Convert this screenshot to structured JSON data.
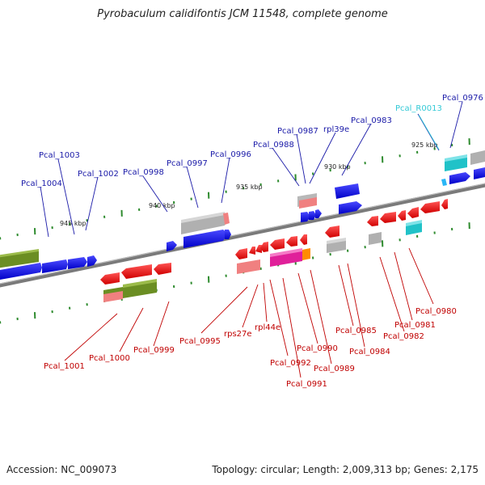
{
  "title": "Pyrobaculum calidifontis JCM 11548, complete genome",
  "accession": "Accession: NC_009073",
  "summary": "Topology: circular; Length: 2,009,313 bp; Genes: 2,175",
  "colors": {
    "backbone": "#8a8a8a",
    "tick": "#2e8b2e",
    "tick_label": "#222222",
    "forward_label": "#1a1aa8",
    "reverse_label": "#c00000",
    "rna_label": "#33c9d6",
    "cds_forward": "#1111ee",
    "cds_reverse": "#ee1111",
    "olive": "#6b8e23",
    "gray": "#b0b0b0",
    "cyan": "#20c2c8",
    "magenta": "#e0209a",
    "pink": "#f08080",
    "orange": "#ff8c00"
  },
  "ticks": [
    "925 kbp",
    "930 kbp",
    "935 kbp",
    "940 kbp",
    "945 kbp"
  ],
  "forward_genes": [
    "Pcal_0976",
    "Pcal_R0013",
    "Pcal_0983",
    "rpl39e",
    "Pcal_0987",
    "Pcal_0988",
    "Pcal_0996",
    "Pcal_0997",
    "Pcal_0998",
    "Pcal_1002",
    "Pcal_1003",
    "Pcal_1004"
  ],
  "reverse_genes": [
    "Pcal_0980",
    "Pcal_0981",
    "Pcal_0982",
    "Pcal_0984",
    "Pcal_0985",
    "Pcal_0989",
    "Pcal_0990",
    "Pcal_0991",
    "Pcal_0992",
    "rpl44e",
    "rps27e",
    "Pcal_0995",
    "Pcal_0999",
    "Pcal_1000",
    "Pcal_1001"
  ]
}
